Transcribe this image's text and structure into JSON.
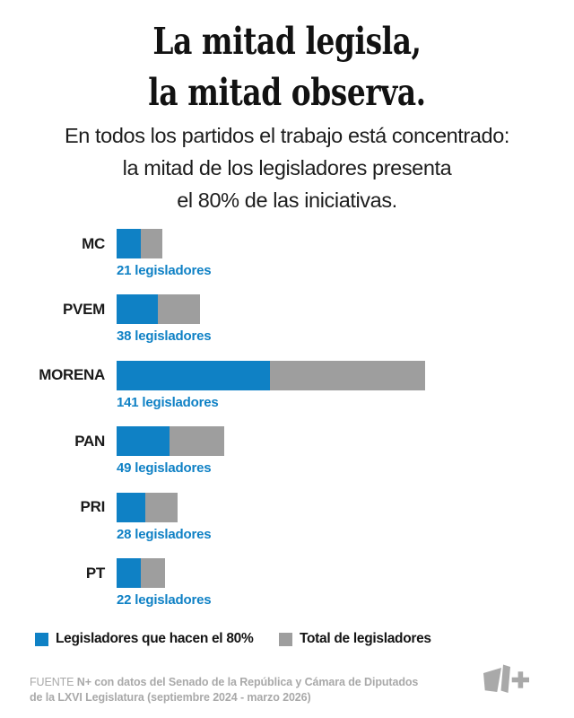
{
  "title": {
    "line1": "La mitad legisla,",
    "line2": "la mitad observa."
  },
  "subtitle": {
    "line1": "En todos los partidos el trabajo está concentrado:",
    "line2": "la mitad de los legisladores presenta",
    "line3": "el 80% de las iniciativas."
  },
  "chart_data": {
    "type": "bar",
    "orientation": "horizontal",
    "title": "La mitad legisla, la mitad observa.",
    "categories": [
      "MC",
      "PVEM",
      "MORENA",
      "PAN",
      "PRI",
      "PT"
    ],
    "series": [
      {
        "name": "Legisladores que hacen el 80%",
        "color": "#0f81c5",
        "values": [
          11,
          19,
          70,
          24,
          13,
          11
        ],
        "values_estimated_from_bar_widths": true
      },
      {
        "name": "Total de legisladores",
        "color": "#9e9e9e",
        "values": [
          21,
          38,
          141,
          49,
          28,
          22
        ]
      }
    ],
    "bar_value_labels": [
      "21 legisladores",
      "38 legisladores",
      "141 legisladores",
      "49 legisladores",
      "28 legisladores",
      "22 legisladores"
    ],
    "x_axis": {
      "unit": "legisladores",
      "min": 0,
      "max": 141,
      "gridlines": false,
      "ticks_visible": false
    },
    "legend_position": "bottom",
    "bars_stacked_overlay": "blue segment drawn over total bar from left"
  },
  "legend": {
    "items": [
      {
        "label": "Legisladores que hacen el 80%",
        "color": "#0f81c5"
      },
      {
        "label": "Total de legisladores",
        "color": "#9e9e9e"
      }
    ]
  },
  "footer": {
    "line1_light": "FUENTE ",
    "line1_bold": "N+ con datos del Senado de la República y Cámara de Diputados",
    "line2_bold": "de la LXVI Legislatura (septiembre 2024 - marzo 2026)"
  },
  "logo": {
    "name": "N+",
    "color": "#a9a9a9"
  },
  "colors": {
    "accent_blue": "#0f81c5",
    "bar_gray": "#9e9e9e",
    "text_dark": "#1a1a1a",
    "footer_gray": "#a9a9a9",
    "background": "#ffffff"
  }
}
